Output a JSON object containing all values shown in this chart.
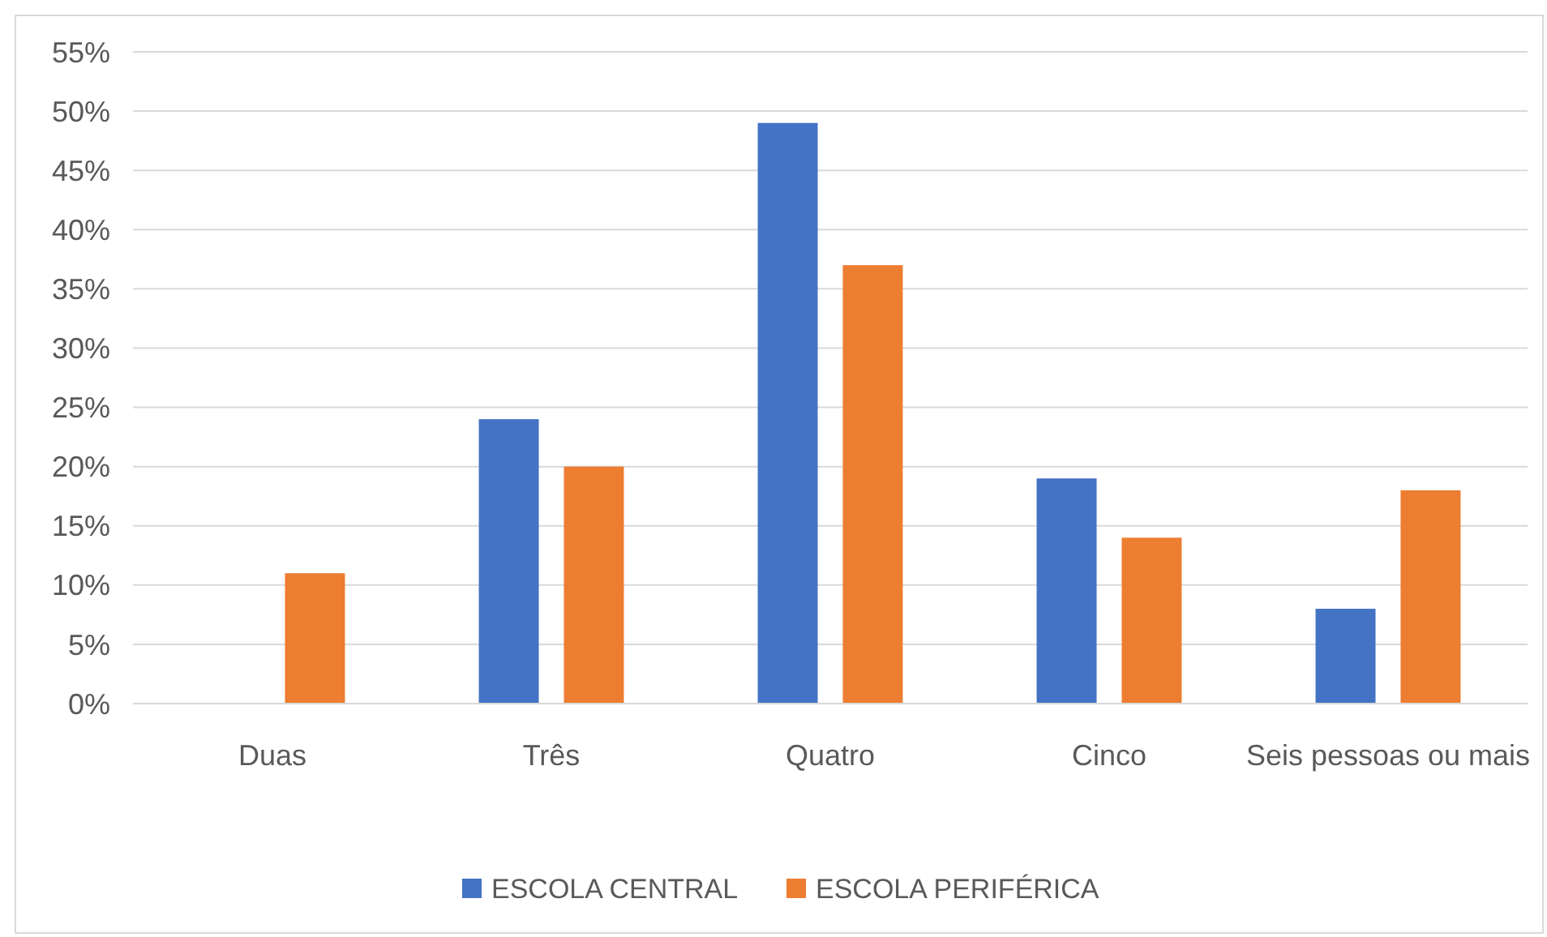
{
  "chart_data": {
    "type": "bar",
    "categories": [
      "Duas",
      "Três",
      "Quatro",
      "Cinco",
      "Seis pessoas ou mais"
    ],
    "series": [
      {
        "name": "ESCOLA CENTRAL",
        "color": "#4472c4",
        "values": [
          0,
          24,
          49,
          19,
          8
        ]
      },
      {
        "name": "ESCOLA PERIFÉRICA",
        "color": "#ed7d31",
        "values": [
          11,
          20,
          37,
          14,
          18
        ]
      }
    ],
    "ylim": [
      0,
      55
    ],
    "yticks": [
      {
        "value": 0,
        "label": "0%"
      },
      {
        "value": 5,
        "label": "5%"
      },
      {
        "value": 10,
        "label": "10%"
      },
      {
        "value": 15,
        "label": "15%"
      },
      {
        "value": 20,
        "label": "20%"
      },
      {
        "value": 25,
        "label": "25%"
      },
      {
        "value": 30,
        "label": "30%"
      },
      {
        "value": 35,
        "label": "35%"
      },
      {
        "value": 40,
        "label": "40%"
      },
      {
        "value": 45,
        "label": "45%"
      },
      {
        "value": 50,
        "label": "50%"
      },
      {
        "value": 55,
        "label": "55%"
      }
    ],
    "grid": "y",
    "legend": "bottom"
  }
}
